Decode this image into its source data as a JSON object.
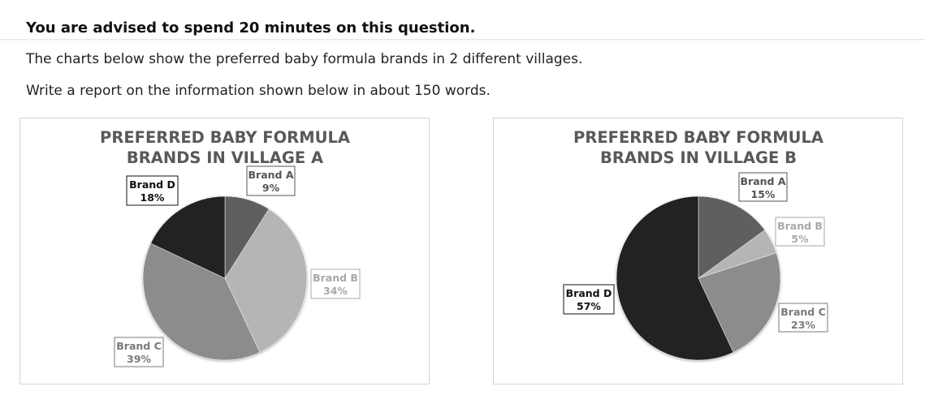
{
  "page": {
    "instruction": "You are advised to spend 20 minutes on this question.",
    "description": "The charts below show the preferred baby formula brands in 2 different villages.",
    "task": "Write a report on the information shown below in about 150 words."
  },
  "chart_data": [
    {
      "type": "pie",
      "title_lines": [
        "PREFERRED BABY FORMULA",
        "BRANDS IN VILLAGE A"
      ],
      "slices": [
        {
          "label": "Brand A",
          "value": 9,
          "display": "9%",
          "color": "#5f5f5f",
          "label_color": "#555555"
        },
        {
          "label": "Brand B",
          "value": 34,
          "display": "34%",
          "color": "#b5b5b5",
          "label_color": "#a8a8a8"
        },
        {
          "label": "Brand C",
          "value": 39,
          "display": "39%",
          "color": "#8c8c8c",
          "label_color": "#7a7a7a"
        },
        {
          "label": "Brand D",
          "value": 18,
          "display": "18%",
          "color": "#222222",
          "label_color": "#111111"
        }
      ]
    },
    {
      "type": "pie",
      "title_lines": [
        "PREFERRED BABY FORMULA",
        "BRANDS IN VILLAGE B"
      ],
      "slices": [
        {
          "label": "Brand A",
          "value": 15,
          "display": "15%",
          "color": "#5f5f5f",
          "label_color": "#555555"
        },
        {
          "label": "Brand B",
          "value": 5,
          "display": "5%",
          "color": "#b5b5b5",
          "label_color": "#a8a8a8"
        },
        {
          "label": "Brand C",
          "value": 23,
          "display": "23%",
          "color": "#8c8c8c",
          "label_color": "#7a7a7a"
        },
        {
          "label": "Brand D",
          "value": 57,
          "display": "57%",
          "color": "#222222",
          "label_color": "#111111"
        }
      ]
    }
  ]
}
